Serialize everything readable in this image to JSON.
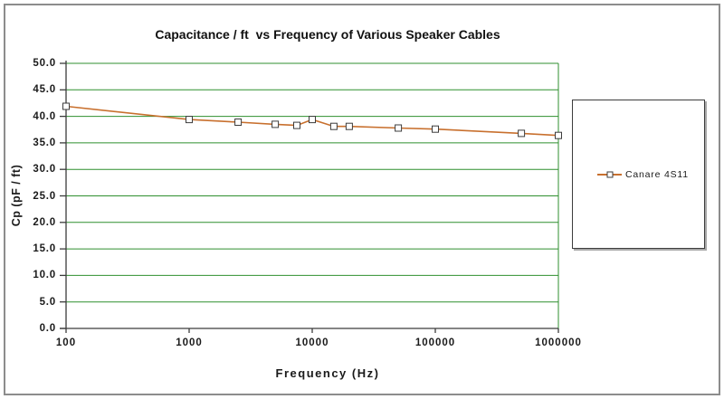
{
  "chart_data": {
    "type": "line",
    "title": "Capacitance / ft  vs Frequency of Various Speaker Cables",
    "xlabel": "Frequency (Hz)",
    "ylabel": "Cp (pF / ft)",
    "x_scale": "log",
    "xlim": [
      100,
      1000000
    ],
    "ylim": [
      0,
      50
    ],
    "x_ticks": [
      "100",
      "1000",
      "10000",
      "100000",
      "1000000"
    ],
    "y_tick_labels": [
      "0.0",
      "5.0",
      "10.0",
      "15.0",
      "20.0",
      "25.0",
      "30.0",
      "35.0",
      "40.0",
      "45.0",
      "50.0"
    ],
    "grid": "horizontal-major",
    "legend_position": "right",
    "series": [
      {
        "name": "Canare 4S11",
        "color": "#C8702E",
        "marker": "square",
        "x": [
          100,
          1000,
          2500,
          5000,
          7500,
          10000,
          15000,
          20000,
          50000,
          100000,
          500000,
          1000000
        ],
        "y": [
          41.9,
          39.4,
          38.9,
          38.5,
          38.3,
          39.4,
          38.1,
          38.1,
          37.8,
          37.6,
          36.8,
          36.4
        ]
      }
    ]
  },
  "colors": {
    "gridline": "#2f8f2f",
    "axis": "#3c3c3c",
    "series_line": "#C8702E",
    "marker_fill": "#ffffff",
    "frame_border": "#8c8c8c",
    "legend_shadow": "#a8a8a8"
  }
}
